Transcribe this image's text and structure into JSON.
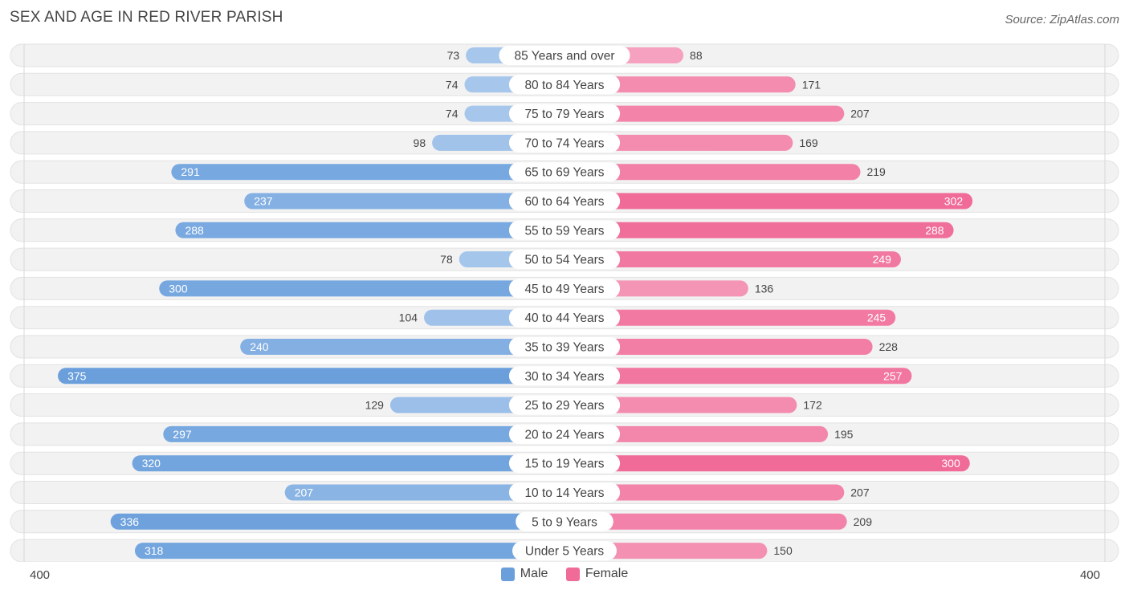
{
  "header": {
    "title": "SEX AND AGE IN RED RIVER PARISH",
    "source": "Source: ZipAtlas.com"
  },
  "legend": {
    "male_label": "Male",
    "female_label": "Female"
  },
  "axis": {
    "left_label": "400",
    "right_label": "400"
  },
  "colors": {
    "male_strong": "#6a9fdc",
    "male_light": "#a9c8ec",
    "female_strong": "#f06b98",
    "female_light": "#f6a3c0",
    "row_bg": "#efefef"
  },
  "chart_data": {
    "type": "bar",
    "orientation": "horizontal-diverging",
    "title": "SEX AND AGE IN RED RIVER PARISH",
    "xlim": [
      -400,
      400
    ],
    "legend_position": "bottom-center",
    "categories": [
      "85 Years and over",
      "80 to 84 Years",
      "75 to 79 Years",
      "70 to 74 Years",
      "65 to 69 Years",
      "60 to 64 Years",
      "55 to 59 Years",
      "50 to 54 Years",
      "45 to 49 Years",
      "40 to 44 Years",
      "35 to 39 Years",
      "30 to 34 Years",
      "25 to 29 Years",
      "20 to 24 Years",
      "15 to 19 Years",
      "10 to 14 Years",
      "5 to 9 Years",
      "Under 5 Years"
    ],
    "series": [
      {
        "name": "Male",
        "values": [
          73,
          74,
          74,
          98,
          291,
          237,
          288,
          78,
          300,
          104,
          240,
          375,
          129,
          297,
          320,
          207,
          336,
          318
        ]
      },
      {
        "name": "Female",
        "values": [
          88,
          171,
          207,
          169,
          219,
          302,
          288,
          249,
          136,
          245,
          228,
          257,
          172,
          195,
          300,
          207,
          209,
          150
        ]
      }
    ]
  }
}
